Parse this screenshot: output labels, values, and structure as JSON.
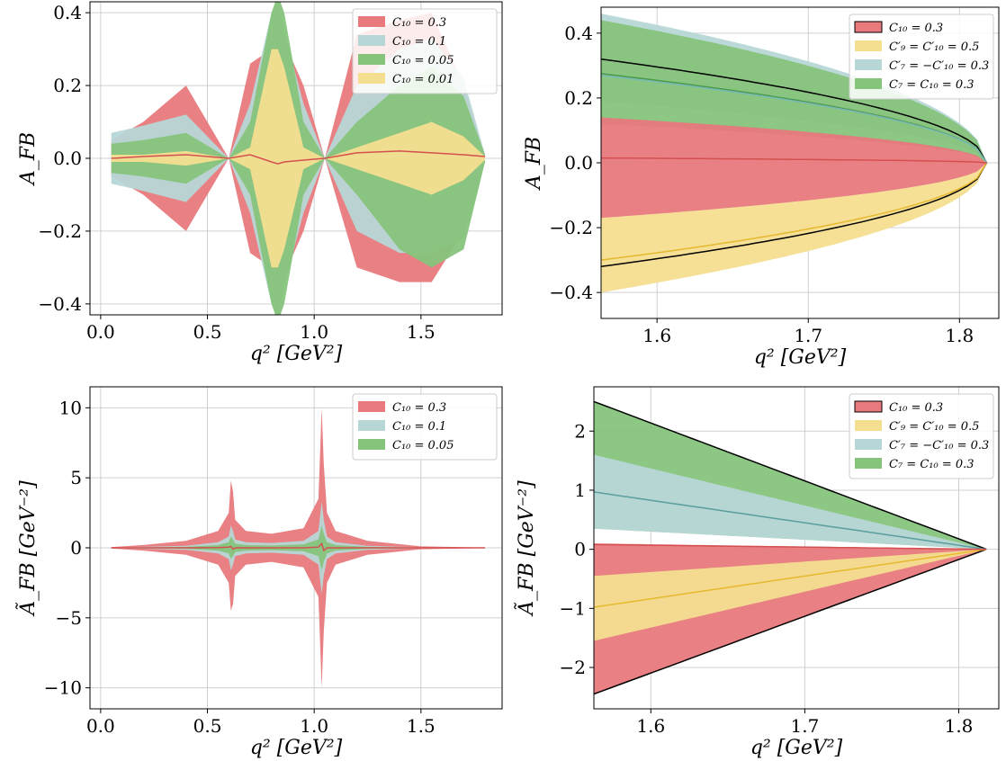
{
  "colors": {
    "red": "#e8797c",
    "blue": "#b7d7d6",
    "green": "#86c47c",
    "yellow": "#f4de90"
  },
  "chart_data": [
    {
      "panel": "top-left",
      "type": "area",
      "xlabel": "q² [GeV²]",
      "ylabel": "A_FB",
      "xlim": [
        -0.05,
        1.88
      ],
      "ylim": [
        -0.43,
        0.43
      ],
      "xticks": [
        0.0,
        0.5,
        1.0,
        1.5
      ],
      "xtick_labels": [
        "0.0",
        "0.5",
        "1.0",
        "1.5"
      ],
      "yticks": [
        -0.4,
        -0.2,
        0.0,
        0.2,
        0.4
      ],
      "ytick_labels": [
        "−0.4",
        "−0.2",
        "0.0",
        "0.2",
        "0.4"
      ],
      "legend_position": "top-right",
      "legend": [
        {
          "label": "C₁₀ = 0.3",
          "color": "red"
        },
        {
          "label": "C₁₀ = 0.1",
          "color": "blue"
        },
        {
          "label": "C₁₀ = 0.05",
          "color": "green"
        },
        {
          "label": "C₁₀ = 0.01",
          "color": "yellow"
        }
      ],
      "x": [
        0.05,
        0.2,
        0.4,
        0.6,
        0.7,
        0.8,
        0.83,
        0.86,
        0.95,
        1.05,
        1.2,
        1.4,
        1.55,
        1.7,
        1.8
      ],
      "series": [
        {
          "color": "red",
          "upper": [
            0.05,
            0.1,
            0.2,
            0.0,
            0.26,
            0.3,
            0.3,
            0.32,
            0.2,
            0.0,
            0.34,
            0.38,
            0.4,
            0.2,
            0.01
          ],
          "lower": [
            -0.05,
            -0.1,
            -0.2,
            0.0,
            -0.26,
            -0.3,
            -0.3,
            -0.32,
            -0.2,
            0.0,
            -0.3,
            -0.34,
            -0.34,
            -0.2,
            -0.01
          ]
        },
        {
          "color": "blue",
          "upper": [
            0.07,
            0.09,
            0.12,
            0.0,
            0.15,
            0.4,
            0.43,
            0.35,
            0.15,
            0.0,
            0.2,
            0.3,
            0.33,
            0.22,
            0.01
          ],
          "lower": [
            -0.07,
            -0.09,
            -0.12,
            0.0,
            -0.15,
            -0.4,
            -0.43,
            -0.35,
            -0.15,
            0.0,
            -0.2,
            -0.26,
            -0.26,
            -0.22,
            -0.01
          ]
        },
        {
          "color": "green",
          "upper": [
            0.04,
            0.05,
            0.07,
            0.0,
            0.1,
            0.4,
            0.45,
            0.4,
            0.1,
            0.0,
            0.1,
            0.2,
            0.25,
            0.17,
            0.01
          ],
          "lower": [
            -0.04,
            -0.05,
            -0.07,
            0.0,
            -0.1,
            -0.4,
            -0.45,
            -0.4,
            -0.1,
            0.0,
            -0.1,
            -0.25,
            -0.3,
            -0.25,
            -0.01
          ]
        },
        {
          "color": "yellow",
          "upper": [
            0.01,
            0.01,
            0.02,
            0.0,
            0.03,
            0.3,
            0.3,
            0.25,
            0.03,
            0.0,
            0.03,
            0.07,
            0.1,
            0.06,
            0.005
          ],
          "lower": [
            -0.01,
            -0.01,
            -0.02,
            0.0,
            -0.03,
            -0.3,
            -0.3,
            -0.25,
            -0.03,
            0.0,
            -0.03,
            -0.07,
            -0.1,
            -0.06,
            -0.005
          ]
        }
      ],
      "central_line": {
        "color": "#d45050",
        "y": [
          0.0,
          0.005,
          0.01,
          0.0,
          0.01,
          -0.01,
          -0.015,
          -0.01,
          -0.005,
          0.0,
          0.015,
          0.02,
          0.015,
          0.01,
          0.005
        ]
      }
    },
    {
      "panel": "top-right",
      "type": "area",
      "xlabel": "q² [GeV²]",
      "ylabel": "A_FB",
      "xlim": [
        1.563,
        1.826
      ],
      "ylim": [
        -0.48,
        0.48
      ],
      "xticks": [
        1.6,
        1.7,
        1.8
      ],
      "xtick_labels": [
        "1.6",
        "1.7",
        "1.8"
      ],
      "yticks": [
        -0.4,
        -0.2,
        0.0,
        0.2,
        0.4
      ],
      "ytick_labels": [
        "−0.4",
        "−0.2",
        "0.0",
        "0.2",
        "0.4"
      ],
      "legend_position": "top-right",
      "legend": [
        {
          "label": "C₁₀ = 0.3",
          "color": "red",
          "edge": "#000"
        },
        {
          "label": "C′₉ = C′₁₀ = 0.5",
          "color": "yellow"
        },
        {
          "label": "C′₇ = −C′₁₀ = 0.3",
          "color": "blue"
        },
        {
          "label": "C₇ = C₁₀ = 0.3",
          "color": "green"
        }
      ],
      "x_end": 1.818,
      "bands": [
        {
          "color": "blue",
          "upper_at_start": 0.46,
          "lower_at_start": 0.19
        },
        {
          "color": "green",
          "upper_at_start": 0.44,
          "lower_at_start": 0.12
        },
        {
          "color": "yellow",
          "upper_at_start": -0.17,
          "lower_at_start": -0.4
        },
        {
          "color": "red",
          "upper_at_start": 0.14,
          "lower_at_start": -0.17
        }
      ],
      "lines": [
        {
          "color": "#000",
          "start": 0.32
        },
        {
          "color": "#000",
          "start": -0.32
        },
        {
          "color": "#4a9a4a",
          "start": 0.275
        },
        {
          "color": "#7ab8b8",
          "start": 0.27
        },
        {
          "color": "#e6b830",
          "start": -0.3
        },
        {
          "color": "#d45050",
          "start": 0.015
        }
      ]
    },
    {
      "panel": "bottom-left",
      "type": "area",
      "xlabel": "q² [GeV²]",
      "ylabel": "Ã_FB [GeV⁻²]",
      "xlim": [
        -0.05,
        1.88
      ],
      "ylim": [
        -11.5,
        11.5
      ],
      "xticks": [
        0.0,
        0.5,
        1.0,
        1.5
      ],
      "xtick_labels": [
        "0.0",
        "0.5",
        "1.0",
        "1.5"
      ],
      "yticks": [
        -10,
        -5,
        0,
        5,
        10
      ],
      "ytick_labels": [
        "−10",
        "−5",
        "0",
        "5",
        "10"
      ],
      "legend_position": "top-right",
      "legend": [
        {
          "label": "C₁₀ = 0.3",
          "color": "red"
        },
        {
          "label": "C₁₀ = 0.1",
          "color": "blue"
        },
        {
          "label": "C₁₀ = 0.05",
          "color": "green"
        }
      ],
      "x": [
        0.05,
        0.2,
        0.4,
        0.55,
        0.6,
        0.61,
        0.62,
        0.63,
        0.68,
        0.8,
        0.95,
        1.02,
        1.035,
        1.045,
        1.06,
        1.1,
        1.25,
        1.5,
        1.8
      ],
      "series": [
        {
          "color": "red",
          "upper": [
            0.05,
            0.2,
            0.5,
            1.2,
            2.5,
            4.8,
            4.0,
            2.0,
            1.2,
            1.0,
            1.4,
            3.5,
            10.0,
            6.0,
            2.5,
            1.2,
            0.5,
            0.1,
            0.02
          ],
          "lower": [
            -0.05,
            -0.2,
            -0.5,
            -1.2,
            -2.5,
            -4.5,
            -4.0,
            -2.0,
            -1.2,
            -1.0,
            -1.4,
            -3.5,
            -10.0,
            -6.0,
            -2.5,
            -1.2,
            -0.5,
            -0.1,
            -0.02
          ]
        },
        {
          "color": "blue",
          "upper": [
            0.02,
            0.07,
            0.15,
            0.4,
            0.8,
            1.6,
            1.2,
            0.6,
            0.4,
            0.35,
            0.5,
            1.2,
            3.3,
            2.0,
            0.8,
            0.4,
            0.15,
            0.03,
            0.01
          ],
          "lower": [
            -0.02,
            -0.07,
            -0.15,
            -0.4,
            -0.8,
            -1.6,
            -1.2,
            -0.6,
            -0.4,
            -0.35,
            -0.5,
            -1.2,
            -3.3,
            -2.0,
            -0.8,
            -0.4,
            -0.15,
            -0.03,
            -0.01
          ]
        },
        {
          "color": "green",
          "upper": [
            0.01,
            0.03,
            0.07,
            0.2,
            0.4,
            0.8,
            0.6,
            0.3,
            0.2,
            0.17,
            0.25,
            0.6,
            1.6,
            1.0,
            0.4,
            0.2,
            0.07,
            0.02,
            0.005
          ],
          "lower": [
            -0.01,
            -0.03,
            -0.07,
            -0.2,
            -0.4,
            -0.8,
            -0.6,
            -0.3,
            -0.2,
            -0.17,
            -0.25,
            -0.6,
            -1.6,
            -1.0,
            -0.4,
            -0.2,
            -0.07,
            -0.02,
            -0.005
          ]
        }
      ],
      "central_line": {
        "color": "#d45050",
        "y": [
          0,
          0,
          0,
          0.02,
          0.05,
          0.1,
          -0.1,
          0,
          0,
          0,
          0,
          0.05,
          0.3,
          -0.2,
          0,
          0,
          0,
          0,
          0
        ]
      }
    },
    {
      "panel": "bottom-right",
      "type": "area",
      "xlabel": "q² [GeV²]",
      "ylabel": "Ã_FB [GeV⁻²]",
      "xlim": [
        1.563,
        1.826
      ],
      "ylim": [
        -2.7,
        2.75
      ],
      "xticks": [
        1.6,
        1.7,
        1.8
      ],
      "xtick_labels": [
        "1.6",
        "1.7",
        "1.8"
      ],
      "yticks": [
        -2,
        -1,
        0,
        1,
        2
      ],
      "ytick_labels": [
        "−2",
        "−1",
        "0",
        "1",
        "2"
      ],
      "legend_position": "top-right",
      "legend": [
        {
          "label": "C₁₀ = 0.3",
          "color": "red",
          "edge": "#000"
        },
        {
          "label": "C′₉ = C′₁₀ = 0.5",
          "color": "yellow"
        },
        {
          "label": "C′₇ = −C′₁₀ = 0.3",
          "color": "blue"
        },
        {
          "label": "C₇ = C₁₀ = 0.3",
          "color": "green"
        }
      ],
      "x_end": 1.818,
      "bands": [
        {
          "color": "green",
          "upper_at_start": 2.5,
          "lower_at_start": 0.35
        },
        {
          "color": "blue",
          "upper_at_start": 1.6,
          "lower_at_start": 0.35
        },
        {
          "color": "red",
          "upper_at_start": 0.1,
          "lower_at_start": -2.45
        },
        {
          "color": "yellow",
          "upper_at_start": -0.45,
          "lower_at_start": -1.55
        }
      ],
      "lines": [
        {
          "color": "#000",
          "start": 2.5
        },
        {
          "color": "#000",
          "start": -2.45
        },
        {
          "color": "#5a9e9e",
          "start": 0.97
        },
        {
          "color": "#e6b830",
          "start": -0.98
        },
        {
          "color": "#d45050",
          "start": 0.08
        }
      ]
    }
  ]
}
